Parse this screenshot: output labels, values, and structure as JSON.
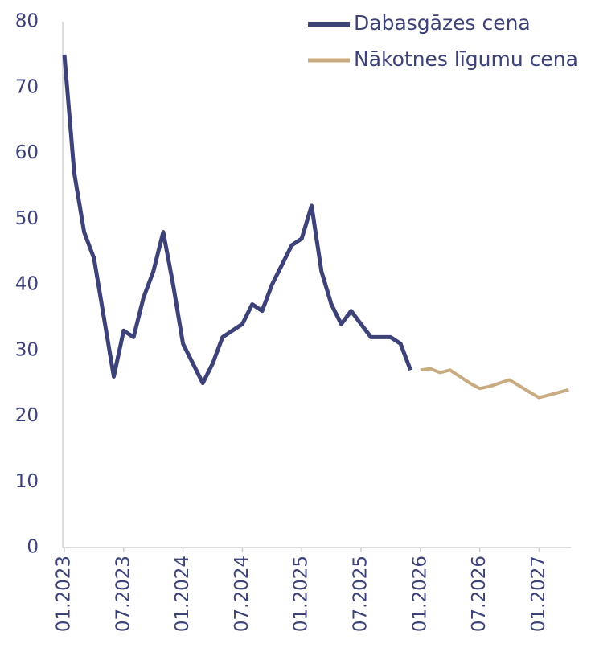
{
  "chart_data": {
    "type": "line",
    "categories": [
      "01.2023",
      null,
      null,
      null,
      null,
      null,
      "07.2023",
      null,
      null,
      null,
      null,
      null,
      "01.2024",
      null,
      null,
      null,
      null,
      null,
      "07.2024",
      null,
      null,
      null,
      null,
      null,
      "01.2025",
      null,
      null,
      null,
      null,
      null,
      "07.2025",
      null,
      null,
      null,
      null,
      null,
      "01.2026",
      null,
      null,
      null,
      null,
      null,
      "07.2026",
      null,
      null,
      null,
      null,
      null,
      "01.2027",
      null,
      null,
      null
    ],
    "series": [
      {
        "name": "Dabasgāzes cena",
        "color": "#3d4279",
        "values": [
          75,
          57,
          48,
          44,
          35,
          26,
          33,
          32,
          38,
          42,
          48,
          40,
          31,
          28,
          25,
          28,
          32,
          33,
          34,
          37,
          36,
          40,
          43,
          46,
          47,
          52,
          42,
          37,
          34,
          36,
          34,
          32,
          32,
          32,
          31,
          27,
          null,
          null,
          null,
          null,
          null,
          null,
          null,
          null,
          null,
          null,
          null,
          null,
          null,
          null,
          null,
          null
        ]
      },
      {
        "name": "Nākotnes līgumu cena",
        "color": "#c9ab82",
        "values": [
          null,
          null,
          null,
          null,
          null,
          null,
          null,
          null,
          null,
          null,
          null,
          null,
          null,
          null,
          null,
          null,
          null,
          null,
          null,
          null,
          null,
          null,
          null,
          null,
          null,
          null,
          null,
          null,
          null,
          null,
          null,
          null,
          null,
          null,
          null,
          null,
          27,
          27.2,
          26.6,
          27,
          26,
          25,
          24.2,
          24.5,
          25,
          25.5,
          24.6,
          23.7,
          22.8,
          23.2,
          23.6,
          24
        ]
      }
    ],
    "ylim": [
      0,
      80
    ],
    "yticks": [
      0,
      10,
      20,
      30,
      40,
      50,
      60,
      70,
      80
    ]
  }
}
